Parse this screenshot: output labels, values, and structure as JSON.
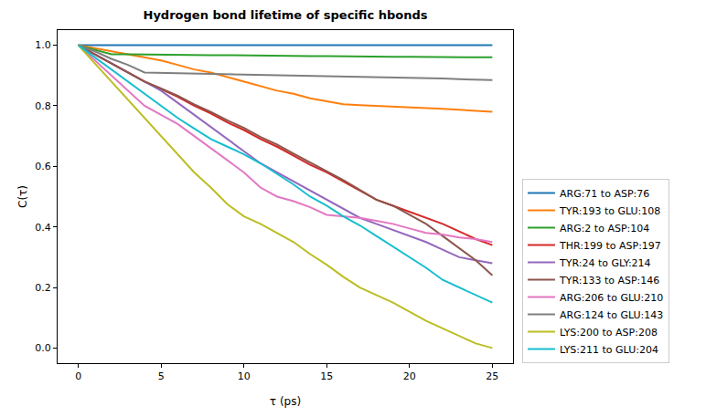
{
  "chart_data": {
    "type": "line",
    "title": "Hydrogen bond lifetime of specific hbonds",
    "x_label": "τ (ps)",
    "y_label": "C(τ)",
    "x": [
      0,
      1,
      2,
      3,
      4,
      5,
      6,
      7,
      8,
      9,
      10,
      11,
      12,
      13,
      14,
      15,
      16,
      17,
      18,
      19,
      20,
      21,
      22,
      23,
      24,
      25
    ],
    "xlim": [
      -1.25,
      26.25
    ],
    "xticks": [
      0,
      5,
      10,
      15,
      20,
      25
    ],
    "ylim": [
      -0.05,
      1.05
    ],
    "yticks": [
      {
        "value": 0,
        "label": "0.0"
      },
      0.2,
      0.4,
      0.6,
      0.8,
      {
        "value": 1,
        "label": "1.0"
      }
    ],
    "grid": false,
    "legend": "right",
    "series": [
      {
        "name": "ARG:71 to ASP:76",
        "color": "#1f77b4",
        "values": [
          1,
          1,
          1,
          1,
          1,
          1,
          1,
          1,
          1,
          1,
          1,
          1,
          1,
          1,
          1,
          1,
          1,
          1,
          1,
          1,
          1,
          1,
          1,
          1,
          1,
          1
        ]
      },
      {
        "name": "TYR:193 to GLU:108",
        "color": "#ff7f0e",
        "values": [
          1,
          0.99,
          0.98,
          0.97,
          0.96,
          0.95,
          0.935,
          0.92,
          0.91,
          0.895,
          0.88,
          0.865,
          0.85,
          0.84,
          0.825,
          0.815,
          0.805,
          0.802,
          0.8,
          0.798,
          0.795,
          0.792,
          0.79,
          0.787,
          0.784,
          0.78
        ]
      },
      {
        "name": "ARG:2 to ASP:104",
        "color": "#2ca02c",
        "values": [
          1,
          0.985,
          0.97,
          0.97,
          0.969,
          0.969,
          0.968,
          0.968,
          0.967,
          0.967,
          0.966,
          0.966,
          0.965,
          0.965,
          0.964,
          0.964,
          0.963,
          0.963,
          0.962,
          0.962,
          0.962,
          0.961,
          0.961,
          0.96,
          0.96,
          0.96
        ]
      },
      {
        "name": "THR:199 to ASP:197",
        "color": "#d62728",
        "values": [
          1,
          0.97,
          0.94,
          0.91,
          0.88,
          0.855,
          0.83,
          0.8,
          0.775,
          0.745,
          0.72,
          0.69,
          0.665,
          0.635,
          0.605,
          0.58,
          0.55,
          0.52,
          0.49,
          0.47,
          0.45,
          0.43,
          0.41,
          0.385,
          0.36,
          0.34
        ]
      },
      {
        "name": "TYR:24 to GLY:214",
        "color": "#9467bd",
        "values": [
          1,
          0.97,
          0.94,
          0.91,
          0.88,
          0.85,
          0.81,
          0.77,
          0.73,
          0.69,
          0.65,
          0.61,
          0.58,
          0.55,
          0.52,
          0.49,
          0.46,
          0.43,
          0.41,
          0.39,
          0.37,
          0.35,
          0.325,
          0.3,
          0.29,
          0.28
        ]
      },
      {
        "name": "TYR:133 to ASP:146",
        "color": "#8c564b",
        "values": [
          1,
          0.97,
          0.94,
          0.91,
          0.88,
          0.857,
          0.833,
          0.805,
          0.78,
          0.752,
          0.727,
          0.697,
          0.672,
          0.642,
          0.613,
          0.585,
          0.555,
          0.522,
          0.49,
          0.47,
          0.44,
          0.41,
          0.37,
          0.33,
          0.29,
          0.24
        ]
      },
      {
        "name": "ARG:206 to GLU:210",
        "color": "#e377c2",
        "values": [
          1,
          0.95,
          0.9,
          0.85,
          0.8,
          0.77,
          0.74,
          0.7,
          0.66,
          0.62,
          0.58,
          0.53,
          0.5,
          0.485,
          0.465,
          0.44,
          0.435,
          0.43,
          0.42,
          0.41,
          0.395,
          0.38,
          0.375,
          0.365,
          0.36,
          0.35
        ]
      },
      {
        "name": "ARG:124 to GLU:143",
        "color": "#7f7f7f",
        "values": [
          1,
          0.98,
          0.955,
          0.935,
          0.91,
          0.909,
          0.908,
          0.907,
          0.906,
          0.905,
          0.904,
          0.903,
          0.902,
          0.901,
          0.9,
          0.899,
          0.898,
          0.897,
          0.896,
          0.895,
          0.893,
          0.892,
          0.89,
          0.888,
          0.886,
          0.885
        ]
      },
      {
        "name": "LYS:200 to ASP:208",
        "color": "#bcbd22",
        "values": [
          1,
          0.94,
          0.88,
          0.82,
          0.76,
          0.7,
          0.64,
          0.58,
          0.53,
          0.475,
          0.435,
          0.41,
          0.38,
          0.35,
          0.31,
          0.275,
          0.235,
          0.2,
          0.175,
          0.15,
          0.12,
          0.09,
          0.065,
          0.04,
          0.015,
          0
        ]
      },
      {
        "name": "LYS:211 to GLU:204",
        "color": "#17becf",
        "values": [
          1,
          0.96,
          0.92,
          0.88,
          0.84,
          0.8,
          0.76,
          0.725,
          0.69,
          0.665,
          0.64,
          0.61,
          0.575,
          0.54,
          0.5,
          0.47,
          0.435,
          0.405,
          0.37,
          0.335,
          0.3,
          0.265,
          0.225,
          0.2,
          0.175,
          0.15
        ]
      }
    ]
  }
}
